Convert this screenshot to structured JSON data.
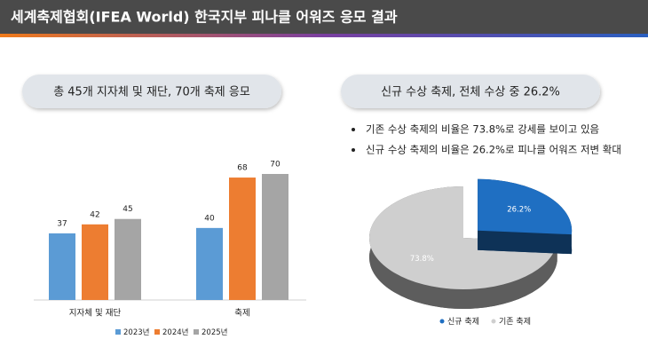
{
  "header": {
    "title": "세계축제협회(IFEA World) 한국지부 피나클 어워즈 응모 결과"
  },
  "left_banner": "총 45개 지자체 및 재단, 70개 축제 응모",
  "right_banner": "신규 수상 축제, 전체 수상 중 26.2%",
  "bullets": [
    "기존 수상 축제의 비율은 73.8%로 강세를 보이고 있음",
    "신규 수상 축제의 비율은 26.2%로 피나클 어워즈 저변 확대"
  ],
  "chart_data": [
    {
      "type": "bar",
      "categories": [
        "지자체 및 재단",
        "축제"
      ],
      "series": [
        {
          "name": "2023년",
          "color": "#5b9bd5",
          "values": [
            37,
            40
          ]
        },
        {
          "name": "2024년",
          "color": "#ed7d31",
          "values": [
            42,
            68
          ]
        },
        {
          "name": "2025년",
          "color": "#a5a5a5",
          "values": [
            45,
            70
          ]
        }
      ]
    },
    {
      "type": "pie",
      "categories": [
        "신규 축제",
        "기존 축제"
      ],
      "values": [
        26.2,
        73.8
      ],
      "value_labels": [
        "26.2%",
        "73.8%"
      ],
      "colors": [
        "#1f6fc2",
        "#cfcfcf"
      ]
    }
  ]
}
